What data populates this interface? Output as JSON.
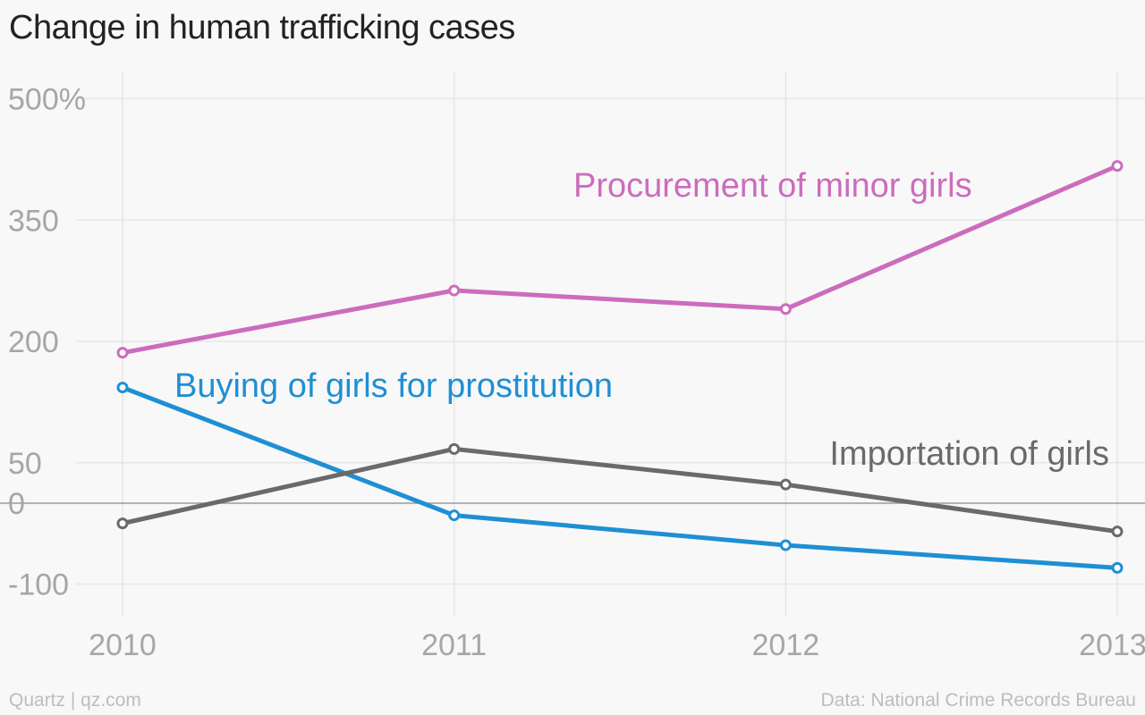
{
  "chart_data": {
    "type": "line",
    "title": "Change in human trafficking cases",
    "xlabel": "",
    "ylabel": "",
    "categories": [
      "2010",
      "2011",
      "2012",
      "2013"
    ],
    "y_ticks": [
      {
        "value": 500,
        "label": "500%"
      },
      {
        "value": 350,
        "label": "350"
      },
      {
        "value": 200,
        "label": "200"
      },
      {
        "value": 50,
        "label": "50"
      },
      {
        "value": 0,
        "label": "0"
      },
      {
        "value": -100,
        "label": "-100"
      }
    ],
    "ylim": [
      -140,
      510
    ],
    "grid": true,
    "series": [
      {
        "name": "Procurement of minor girls",
        "color": "#cc6cbd",
        "values": [
          186,
          263,
          240,
          417
        ]
      },
      {
        "name": "Buying of girls for prostitution",
        "color": "#1f8fd4",
        "values": [
          143,
          -15,
          -52,
          -80
        ]
      },
      {
        "name": "Importation of girls",
        "color": "#6a6a6a",
        "values": [
          -25,
          67,
          23,
          -35
        ]
      }
    ],
    "source": "Data: National Crime Records Bureau",
    "credit": "Quartz | qz.com"
  }
}
